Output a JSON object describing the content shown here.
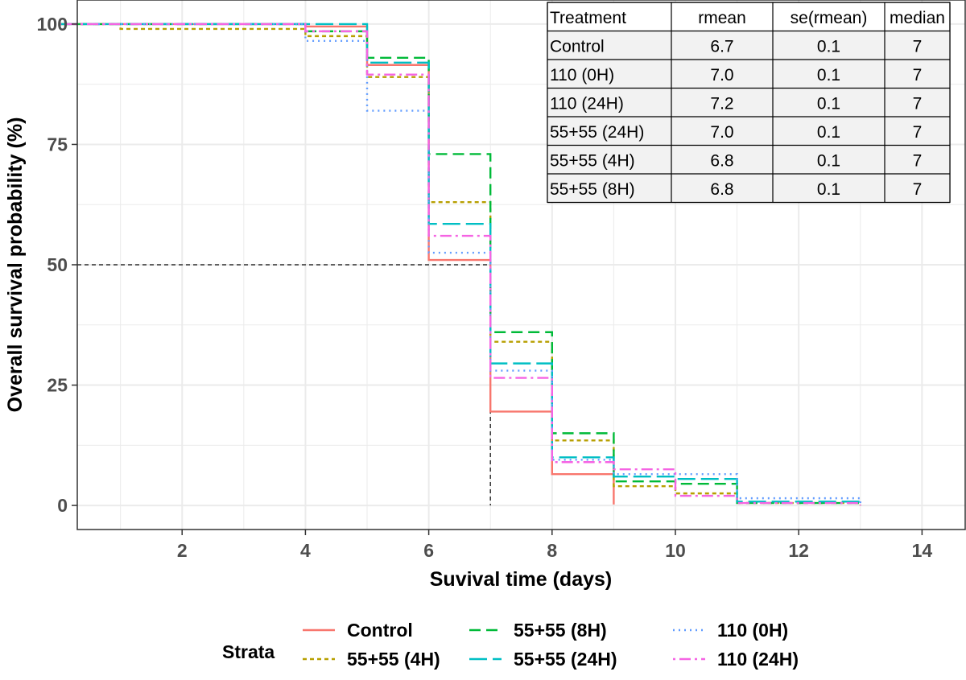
{
  "chart_data": {
    "type": "line",
    "step": true,
    "xlabel": "Suvival time (days)",
    "ylabel": "Overall survival probability (%)",
    "xlim": [
      0.3,
      14.7
    ],
    "ylim": [
      -5,
      105
    ],
    "xticks": [
      2,
      4,
      6,
      8,
      10,
      12,
      14
    ],
    "yticks": [
      0,
      25,
      50,
      75,
      100
    ],
    "grid": true,
    "median_reference": {
      "survival": 50,
      "time": 7
    },
    "series": [
      {
        "name": "Control",
        "color": "#F8766D",
        "dash": "solid",
        "x": [
          0,
          4,
          5,
          6,
          7,
          8,
          9
        ],
        "y": [
          100,
          99.5,
          91.5,
          51,
          19.5,
          6.5,
          0.2
        ]
      },
      {
        "name": "55+55 (4H)",
        "color": "#B79F00",
        "dash": "dotted",
        "x": [
          0,
          1,
          4,
          5,
          6,
          7,
          8,
          9,
          10,
          11,
          13
        ],
        "y": [
          100,
          99,
          97.5,
          89,
          63,
          34,
          13.5,
          4,
          2.5,
          0.5,
          0
        ]
      },
      {
        "name": "55+55 (8H)",
        "color": "#00BA38",
        "dash": "dashed",
        "x": [
          0,
          4,
          5,
          6,
          7,
          8,
          9,
          10,
          11,
          13
        ],
        "y": [
          100,
          98.5,
          93,
          73,
          36,
          15,
          5,
          4.5,
          0.5,
          0
        ]
      },
      {
        "name": "55+55 (24H)",
        "color": "#00BFC4",
        "dash": "longdash",
        "x": [
          0,
          5,
          6,
          7,
          8,
          9,
          10,
          11,
          13
        ],
        "y": [
          100,
          92,
          58.5,
          29.5,
          10,
          6,
          5.5,
          0.8,
          0
        ]
      },
      {
        "name": "110 (0H)",
        "color": "#619CFF",
        "dash": "finedotted",
        "x": [
          0,
          4,
          5,
          6,
          7,
          8,
          9,
          11,
          13
        ],
        "y": [
          100,
          96.5,
          82,
          52.5,
          28,
          9.5,
          6.5,
          1.5,
          0
        ]
      },
      {
        "name": "110 (24H)",
        "color": "#F564E3",
        "dash": "dotdash",
        "x": [
          0,
          4,
          5,
          6,
          7,
          8,
          9,
          10,
          11,
          13
        ],
        "y": [
          100,
          98.5,
          89.5,
          56,
          26.5,
          9,
          7.5,
          2,
          0.5,
          0
        ]
      }
    ],
    "legend": {
      "title": "Strata",
      "position": "bottom"
    },
    "summary_table": {
      "position": "top-right",
      "columns": [
        "Treatment",
        "rmean",
        "se(rmean)",
        "median"
      ],
      "rows": [
        [
          "Control",
          "6.7",
          "0.1",
          "7"
        ],
        [
          "110 (0H)",
          "7.0",
          "0.1",
          "7"
        ],
        [
          "110 (24H)",
          "7.2",
          "0.1",
          "7"
        ],
        [
          "55+55 (24H)",
          "7.0",
          "0.1",
          "7"
        ],
        [
          "55+55 (4H)",
          "6.8",
          "0.1",
          "7"
        ],
        [
          "55+55 (8H)",
          "6.8",
          "0.1",
          "7"
        ]
      ]
    },
    "colors": {
      "panel_border": "#333333",
      "grid": "#ebebeb",
      "table_fill": "#f2f2f2",
      "reference": "#333333"
    }
  }
}
